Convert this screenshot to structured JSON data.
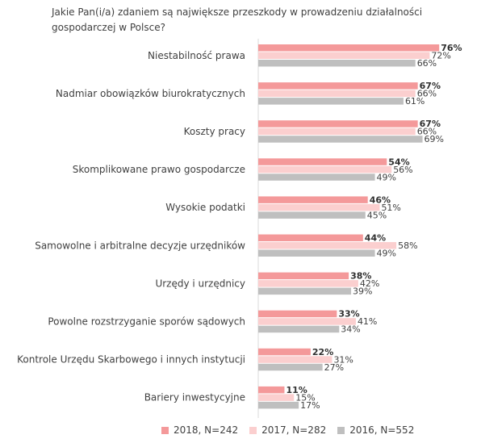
{
  "chart_data": {
    "type": "bar",
    "orientation": "horizontal",
    "title": "Jakie Pan(i/a) zdaniem są największe przeszkody w prowadzeniu działalności gospodarczej w Polsce?",
    "categories": [
      "Niestabilność prawa",
      "Nadmiar obowiązków biurokratycznych",
      "Koszty pracy",
      "Skomplikowane prawo gospodarcze",
      "Wysokie podatki",
      "Samowolne i arbitralne decyzje urzędników",
      "Urzędy i urzędnicy",
      "Powolne rozstrzyganie sporów sądowych",
      "Kontrole Urzędu Skarbowego i innych instytucji",
      "Bariery inwestycyjne"
    ],
    "series": [
      {
        "name": "2018, N=242",
        "color": "#f4999a",
        "values": [
          76,
          67,
          67,
          54,
          46,
          44,
          38,
          33,
          22,
          11
        ]
      },
      {
        "name": "2017, N=282",
        "color": "#fbcfcf",
        "values": [
          72,
          66,
          66,
          56,
          51,
          58,
          42,
          41,
          31,
          15
        ]
      },
      {
        "name": "2016, N=552",
        "color": "#bfbfbf",
        "values": [
          66,
          61,
          69,
          49,
          45,
          49,
          39,
          34,
          27,
          17
        ]
      }
    ],
    "value_suffix": "%",
    "xlim": [
      0,
      100
    ],
    "grid": false,
    "legend_position": "bottom"
  }
}
